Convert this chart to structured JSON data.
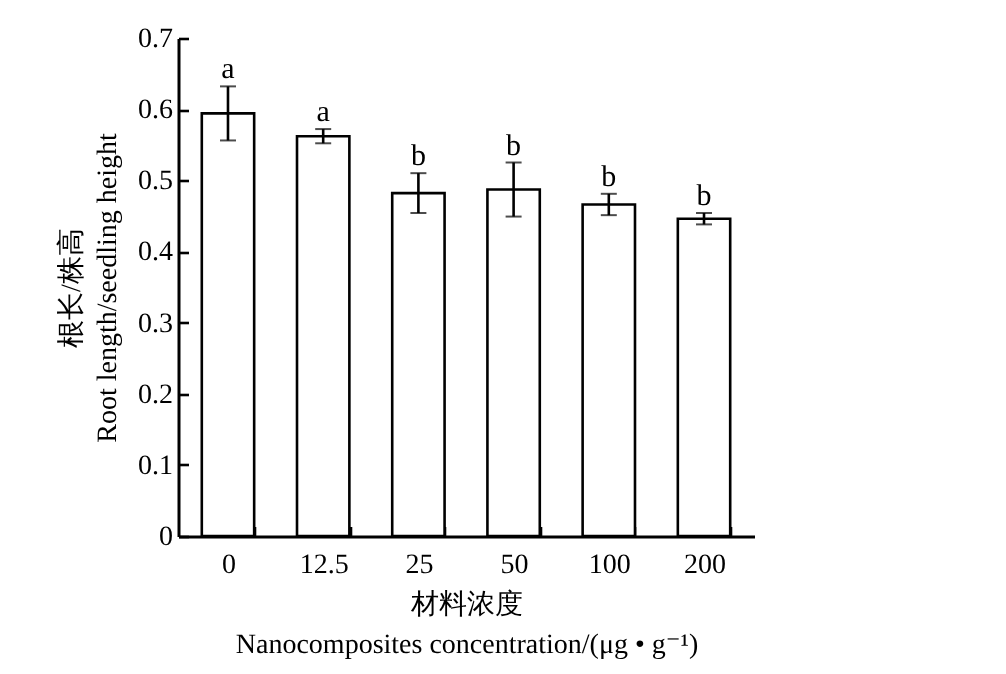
{
  "chart_data": {
    "type": "bar",
    "categories": [
      "0",
      "12.5",
      "25",
      "50",
      "100",
      "200"
    ],
    "values": [
      0.594,
      0.562,
      0.482,
      0.487,
      0.466,
      0.446
    ],
    "errors": [
      0.038,
      0.01,
      0.028,
      0.038,
      0.015,
      0.008
    ],
    "color": "#ffffff",
    "xlabel": "材料浓度\nNanocomposites concentration/(μg • g⁻¹)",
    "ylabel": "根长/株高\nRoot length/seedling height",
    "ylim": [
      0,
      0.7
    ],
    "yticks": [
      0,
      0.1,
      0.2,
      0.3,
      0.4,
      0.5,
      0.6,
      0.7
    ],
    "annotations": [
      {
        "text": "a",
        "x": "0",
        "y": 0.632
      },
      {
        "text": "a",
        "x": "12.5",
        "y": 0.572
      },
      {
        "text": "b",
        "x": "25",
        "y": 0.51
      },
      {
        "text": "b",
        "x": "50",
        "y": 0.525
      },
      {
        "text": "b",
        "x": "100",
        "y": 0.481
      },
      {
        "text": "b",
        "x": "200",
        "y": 0.454
      }
    ]
  }
}
